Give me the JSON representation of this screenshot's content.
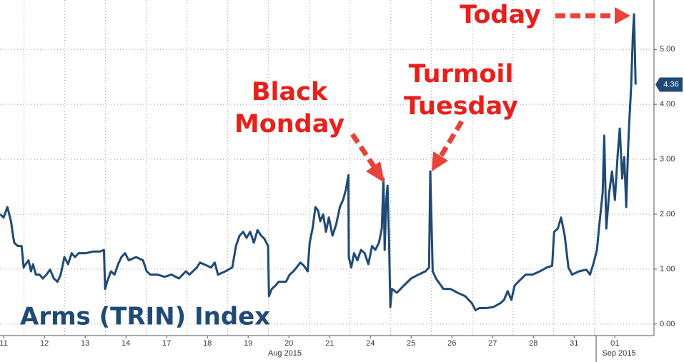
{
  "chart_data": {
    "type": "line",
    "title": "Arms (TRIN) Index",
    "annotations": [
      {
        "lines": [
          "Black",
          "Monday"
        ]
      },
      {
        "lines": [
          "Turmoil",
          "Tuesday"
        ]
      },
      {
        "lines": [
          "Today"
        ]
      }
    ],
    "xlim": [
      -0.09,
      15.96
    ],
    "ylim": [
      -0.21,
      5.9
    ],
    "xticks": [
      {
        "value": 0,
        "label": "11"
      },
      {
        "value": 1,
        "label": "12"
      },
      {
        "value": 2,
        "label": "13"
      },
      {
        "value": 3,
        "label": "14"
      },
      {
        "value": 4,
        "label": "17"
      },
      {
        "value": 5,
        "label": "18"
      },
      {
        "value": 6,
        "label": "19"
      },
      {
        "value": 7,
        "label": "20"
      },
      {
        "value": 8,
        "label": "21"
      },
      {
        "value": 9,
        "label": "24"
      },
      {
        "value": 10,
        "label": "25"
      },
      {
        "value": 11,
        "label": "26"
      },
      {
        "value": 12,
        "label": "27"
      },
      {
        "value": 13,
        "label": "28"
      },
      {
        "value": 14,
        "label": "31"
      },
      {
        "value": 15,
        "label": "01"
      }
    ],
    "x_group_labels": [
      {
        "value": 6.9,
        "label": "Aug 2015"
      },
      {
        "value": 15.1,
        "label": "Sep 2015"
      }
    ],
    "yticks": [
      {
        "value": 0,
        "label": "0.00"
      },
      {
        "value": 1,
        "label": "1.00"
      },
      {
        "value": 2,
        "label": "2.00"
      },
      {
        "value": 3,
        "label": "3.00"
      },
      {
        "value": 4,
        "label": "4.00"
      },
      {
        "value": 5,
        "label": "5.00"
      }
    ],
    "grid": true,
    "series": [
      {
        "name": "Arms (TRIN) Index",
        "color": "#1f4a75",
        "x": [
          -0.09,
          0,
          0.09,
          0.18,
          0.23,
          0.26,
          0.35,
          0.44,
          0.49,
          0.54,
          0.61,
          0.67,
          0.72,
          0.79,
          0.88,
          0.96,
          1.05,
          1.14,
          1.23,
          1.32,
          1.4,
          1.49,
          1.58,
          1.67,
          1.75,
          1.84,
          2.02,
          2.19,
          2.37,
          2.46,
          2.49,
          2.54,
          2.63,
          2.72,
          2.81,
          2.89,
          2.98,
          3.07,
          3.25,
          3.42,
          3.51,
          3.6,
          3.77,
          3.95,
          4.12,
          4.3,
          4.47,
          4.56,
          4.74,
          4.82,
          4.91,
          5.09,
          5.18,
          5.26,
          5.44,
          5.61,
          5.7,
          5.79,
          5.88,
          5.96,
          6.05,
          6.14,
          6.23,
          6.32,
          6.4,
          6.49,
          6.51,
          6.58,
          6.67,
          6.75,
          6.93,
          7.02,
          7.11,
          7.19,
          7.28,
          7.37,
          7.46,
          7.51,
          7.58,
          7.65,
          7.72,
          7.77,
          7.84,
          7.91,
          7.98,
          8.07,
          8.16,
          8.25,
          8.33,
          8.4,
          8.46,
          8.47,
          8.53,
          8.6,
          8.68,
          8.77,
          8.86,
          8.95,
          9.04,
          9.12,
          9.21,
          9.28,
          9.32,
          9.35,
          9.39,
          9.42,
          9.46,
          9.49,
          9.53,
          9.65,
          9.82,
          10.0,
          10.18,
          10.35,
          10.44,
          10.47,
          10.53,
          10.61,
          10.79,
          10.96,
          11.14,
          11.32,
          11.49,
          11.58,
          11.67,
          11.84,
          12.02,
          12.19,
          12.28,
          12.37,
          12.46,
          12.54,
          12.63,
          12.81,
          12.98,
          13.16,
          13.33,
          13.46,
          13.51,
          13.6,
          13.68,
          13.77,
          13.86,
          13.95,
          14.12,
          14.3,
          14.39,
          14.47,
          14.56,
          14.61,
          14.7,
          14.74,
          14.79,
          14.86,
          14.93,
          15.0,
          15.07,
          15.12,
          15.18,
          15.23,
          15.28,
          15.32,
          15.35,
          15.4,
          15.44,
          15.47,
          15.51
        ],
        "values": [
          2.0,
          1.94,
          2.13,
          1.87,
          1.61,
          1.48,
          1.42,
          1.42,
          1.03,
          1.09,
          1.16,
          0.96,
          1.09,
          0.9,
          0.9,
          0.83,
          0.9,
          0.99,
          0.83,
          0.77,
          0.9,
          1.22,
          1.09,
          1.29,
          1.22,
          1.29,
          1.29,
          1.32,
          1.32,
          1.35,
          0.64,
          0.77,
          0.96,
          0.9,
          1.09,
          1.22,
          1.29,
          1.16,
          1.22,
          1.16,
          0.96,
          0.9,
          0.9,
          0.86,
          0.9,
          0.83,
          0.96,
          0.9,
          1.03,
          1.12,
          1.09,
          1.03,
          1.12,
          0.9,
          0.96,
          1.03,
          1.42,
          1.61,
          1.68,
          1.57,
          1.68,
          1.48,
          1.71,
          1.61,
          1.55,
          1.42,
          0.51,
          0.64,
          0.7,
          0.77,
          0.77,
          0.9,
          0.96,
          1.03,
          1.12,
          1.06,
          0.96,
          1.48,
          1.74,
          2.13,
          2.06,
          1.87,
          2.0,
          1.68,
          1.94,
          1.61,
          1.81,
          2.13,
          2.26,
          2.45,
          2.71,
          1.22,
          1.03,
          1.29,
          1.16,
          1.35,
          1.29,
          1.09,
          1.42,
          1.35,
          1.48,
          1.74,
          2.65,
          1.35,
          2.26,
          2.52,
          1.48,
          0.31,
          0.64,
          0.57,
          0.7,
          0.83,
          0.9,
          0.96,
          1.03,
          2.78,
          0.96,
          0.83,
          0.64,
          0.64,
          0.57,
          0.51,
          0.38,
          0.25,
          0.29,
          0.29,
          0.31,
          0.38,
          0.44,
          0.6,
          0.44,
          0.7,
          0.77,
          0.9,
          0.9,
          0.96,
          1.03,
          1.06,
          1.68,
          1.74,
          1.94,
          1.61,
          1.03,
          0.9,
          0.96,
          0.99,
          0.9,
          1.09,
          1.35,
          1.74,
          2.39,
          3.43,
          1.74,
          2.39,
          2.78,
          2.26,
          3.1,
          3.56,
          2.65,
          3.04,
          2.13,
          3.1,
          3.62,
          4.34,
          5.25,
          5.64,
          4.36
        ]
      }
    ]
  }
}
